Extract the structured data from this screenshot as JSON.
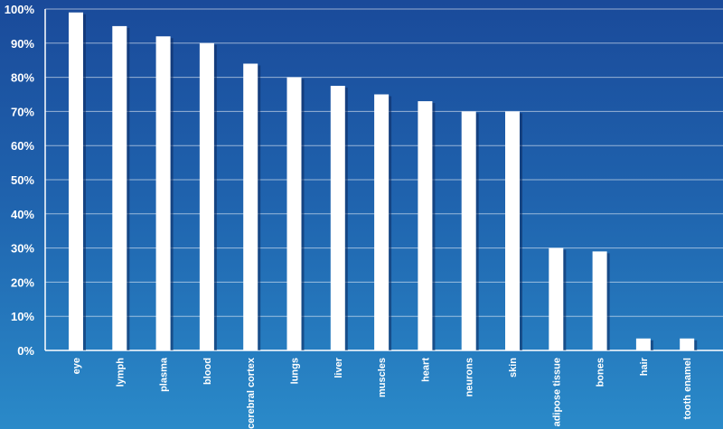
{
  "chart_data": {
    "type": "bar",
    "categories": [
      "eye",
      "lymph",
      "plasma",
      "blood",
      "cerebral cortex",
      "lungs",
      "liver",
      "muscles",
      "heart",
      "neurons",
      "skin",
      "adipose tissue",
      "bones",
      "hair",
      "tooth enamel"
    ],
    "values": [
      99,
      95,
      92,
      90,
      84,
      80,
      77.5,
      75,
      73,
      70,
      70,
      30,
      29,
      3.5,
      3.5
    ],
    "yticks": [
      "0%",
      "10%",
      "20%",
      "30%",
      "40%",
      "50%",
      "60%",
      "70%",
      "80%",
      "90%",
      "100%"
    ],
    "ylim": [
      0,
      100
    ],
    "grid": true,
    "colors": {
      "bar": "#ffffff",
      "background_top": "#1a4a9a",
      "background_bottom": "#2a8ac9"
    }
  }
}
